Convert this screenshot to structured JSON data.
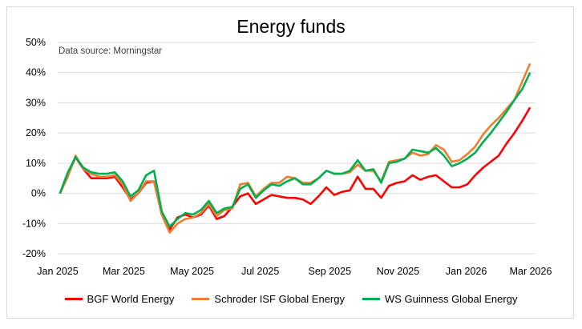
{
  "chart_data": {
    "type": "line",
    "title": "Energy funds",
    "subtitle": "Data source: Morningstar",
    "xlabel": "",
    "ylabel": "",
    "ylim": [
      -20,
      50
    ],
    "yticks": [
      "-20%",
      "-10%",
      "0%",
      "10%",
      "20%",
      "30%",
      "40%",
      "50%"
    ],
    "xticks": [
      "Jan 2025",
      "Mar 2025",
      "May 2025",
      "Jul 2025",
      "Sep 2025",
      "Nov 2025",
      "Jan 2026",
      "Mar 2026"
    ],
    "grid": true,
    "legend": "bottom",
    "x": [
      "2025-01-03",
      "2025-01-10",
      "2025-01-17",
      "2025-01-24",
      "2025-01-31",
      "2025-02-07",
      "2025-02-14",
      "2025-02-21",
      "2025-02-28",
      "2025-03-07",
      "2025-03-14",
      "2025-03-21",
      "2025-03-28",
      "2025-04-04",
      "2025-04-11",
      "2025-04-18",
      "2025-04-25",
      "2025-05-02",
      "2025-05-09",
      "2025-05-16",
      "2025-05-23",
      "2025-05-30",
      "2025-06-06",
      "2025-06-13",
      "2025-06-20",
      "2025-06-27",
      "2025-07-04",
      "2025-07-11",
      "2025-07-18",
      "2025-07-25",
      "2025-08-01",
      "2025-08-08",
      "2025-08-15",
      "2025-08-22",
      "2025-08-29",
      "2025-09-05",
      "2025-09-12",
      "2025-09-19",
      "2025-09-26",
      "2025-10-03",
      "2025-10-10",
      "2025-10-17",
      "2025-10-24",
      "2025-10-31",
      "2025-11-07",
      "2025-11-14",
      "2025-11-21",
      "2025-11-28",
      "2025-12-05",
      "2025-12-12",
      "2025-12-19",
      "2025-12-26",
      "2026-01-02",
      "2026-01-09",
      "2026-01-16",
      "2026-01-23",
      "2026-01-30",
      "2026-02-06",
      "2026-02-13",
      "2026-02-20",
      "2026-02-27"
    ],
    "series": [
      {
        "name": "BGF World Energy",
        "color": "#ff0000",
        "values": [
          0,
          6,
          12,
          8,
          5,
          5,
          5,
          5.5,
          2,
          -2,
          0,
          3.5,
          4,
          -7,
          -12,
          -8,
          -7,
          -8,
          -7,
          -4,
          -8.5,
          -7.5,
          -4.5,
          -1,
          0,
          -3.5,
          -2,
          -0.5,
          -1,
          -1.5,
          -1.5,
          -2,
          -3.5,
          -1,
          2,
          -0.5,
          0.5,
          1,
          5.5,
          1.5,
          1.5,
          -1.5,
          2.5,
          3.5,
          4,
          6,
          4.5,
          5.5,
          6,
          4,
          2,
          2,
          3,
          6,
          8.5,
          10.5,
          12.5,
          16.5,
          20,
          24,
          28.5
        ]
      },
      {
        "name": "Schroder ISF Global Energy",
        "color": "#ed7d31",
        "values": [
          0,
          5.5,
          12.5,
          8,
          6.5,
          5.5,
          5.5,
          6,
          3,
          -2.5,
          0,
          4,
          4,
          -7,
          -13,
          -10,
          -8.5,
          -8,
          -6.5,
          -3.5,
          -7.5,
          -5.5,
          -5,
          3,
          3.5,
          -1,
          1.5,
          3.5,
          3.5,
          5.5,
          5,
          3.5,
          3.5,
          5,
          7.5,
          6.5,
          6.5,
          7,
          9.5,
          7.5,
          7.5,
          4,
          10.5,
          11,
          11.5,
          13.5,
          12.5,
          13,
          16,
          14.5,
          10.5,
          11,
          13,
          15.5,
          19.5,
          22.5,
          25,
          28,
          31,
          37,
          43
        ]
      },
      {
        "name": "WS Guinness Global Energy",
        "color": "#00b050",
        "values": [
          0,
          7,
          12,
          8.5,
          7,
          6.5,
          6.5,
          7,
          4,
          -1,
          1,
          6,
          7.5,
          -6,
          -11,
          -8.5,
          -6.5,
          -7,
          -5.5,
          -2.5,
          -6.5,
          -5,
          -4.5,
          1.5,
          3,
          -1.5,
          1,
          3,
          2.5,
          4,
          5,
          3,
          3,
          5,
          7.5,
          6.5,
          6.5,
          7.5,
          11,
          7.5,
          8,
          3.5,
          10,
          10.5,
          11.5,
          14.5,
          14,
          13.5,
          15,
          12.5,
          9,
          10,
          11.5,
          13.5,
          17,
          20,
          23.5,
          27,
          31,
          34.5,
          40
        ]
      }
    ]
  }
}
